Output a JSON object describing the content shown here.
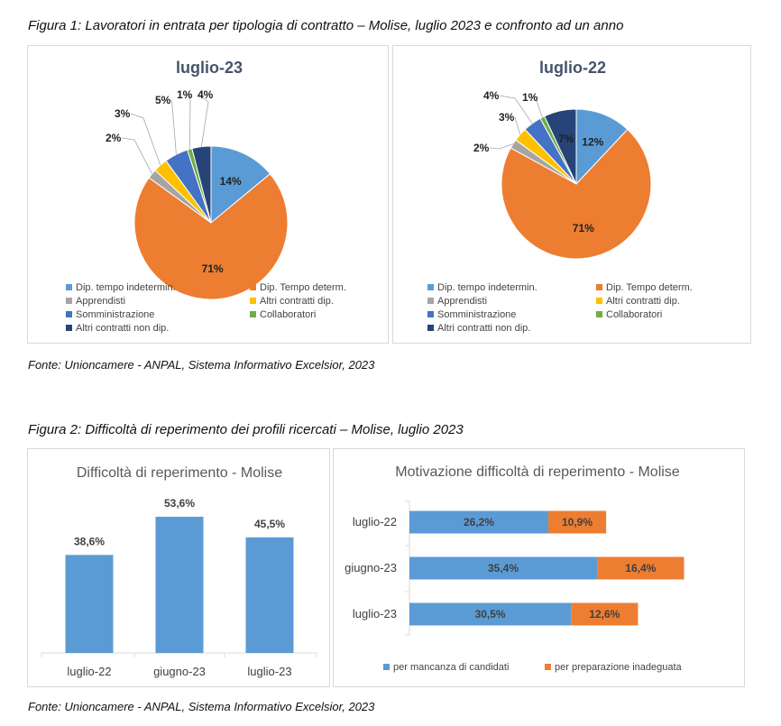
{
  "figure1": {
    "caption": "Figura 1: Lavoratori in entrata per tipologia di contratto – Molise, luglio 2023 e confronto ad un anno",
    "source": "Fonte: Unioncamere - ANPAL, Sistema Informativo Excelsior, 2023"
  },
  "figure2": {
    "caption": "Figura 2: Difficoltà di reperimento dei profili ricercati – Molise, luglio 2023",
    "source": "Fonte: Unioncamere - ANPAL, Sistema Informativo Excelsior, 2023"
  },
  "chart_data": [
    {
      "type": "pie",
      "title": "luglio-23",
      "categories": [
        "Dip. tempo indetermin.",
        "Dip. Tempo determ.",
        "Apprendisti",
        "Altri contratti dip.",
        "Somministrazione",
        "Collaboratori",
        "Altri contratti non dip."
      ],
      "values": [
        14,
        71,
        2,
        3,
        5,
        1,
        4
      ],
      "labels": [
        "14%",
        "71%",
        "2%",
        "3%",
        "5%",
        "1%",
        "4%"
      ],
      "colors": [
        "#5b9bd5",
        "#ed7d31",
        "#a5a5a5",
        "#ffc000",
        "#4472c4",
        "#70ad47",
        "#264478"
      ],
      "legend": "bottom"
    },
    {
      "type": "pie",
      "title": "luglio-22",
      "categories": [
        "Dip. tempo indetermin.",
        "Dip. Tempo determ.",
        "Apprendisti",
        "Altri contratti dip.",
        "Somministrazione",
        "Collaboratori",
        "Altri contratti non dip."
      ],
      "values": [
        12,
        71,
        2,
        3,
        4,
        1,
        7
      ],
      "labels": [
        "12%",
        "71%",
        "2%",
        "3%",
        "4%",
        "1%",
        "7%"
      ],
      "colors": [
        "#5b9bd5",
        "#ed7d31",
        "#a5a5a5",
        "#ffc000",
        "#4472c4",
        "#70ad47",
        "#264478"
      ],
      "legend": "bottom"
    },
    {
      "type": "bar",
      "title": "Difficoltà di reperimento - Molise",
      "categories": [
        "luglio-22",
        "giugno-23",
        "luglio-23"
      ],
      "values": [
        38.6,
        53.6,
        45.5
      ],
      "labels": [
        "38,6%",
        "53,6%",
        "45,5%"
      ],
      "ylim": [
        0,
        60
      ],
      "color": "#5b9bd5",
      "grid": false
    },
    {
      "type": "bar",
      "orientation": "horizontal",
      "stacked": true,
      "title": "Motivazione difficoltà di reperimento - Molise",
      "categories": [
        "luglio-22",
        "giugno-23",
        "luglio-23"
      ],
      "series": [
        {
          "name": "per mancanza di candidati",
          "values": [
            26.2,
            35.4,
            30.5
          ],
          "labels": [
            "26,2%",
            "35,4%",
            "30,5%"
          ],
          "color": "#5b9bd5"
        },
        {
          "name": "per preparazione inadeguata",
          "values": [
            10.9,
            16.4,
            12.6
          ],
          "labels": [
            "10,9%",
            "16,4%",
            "12,6%"
          ],
          "color": "#ed7d31"
        }
      ],
      "xlim": [
        0,
        60
      ],
      "legend": "bottom"
    }
  ]
}
